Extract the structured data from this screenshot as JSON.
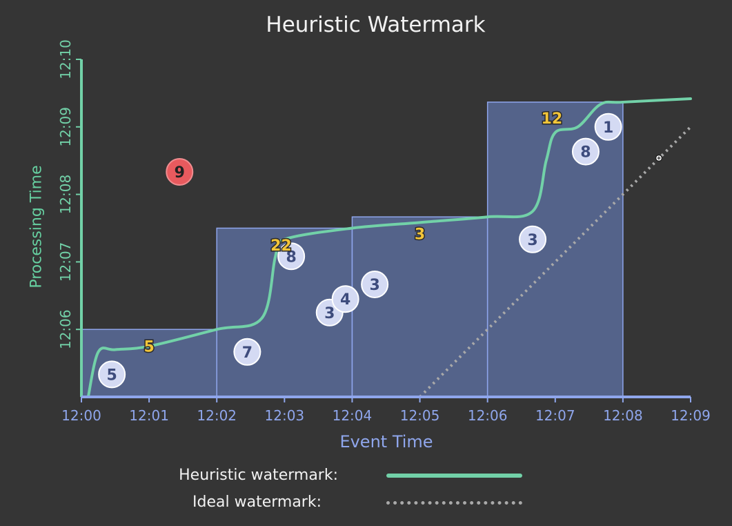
{
  "chart_data": {
    "type": "scatter",
    "title": "Heuristic Watermark",
    "xlabel": "Event Time",
    "ylabel": "Processing Time",
    "x_ticks": [
      "12:00",
      "12:01",
      "12:02",
      "12:03",
      "12:04",
      "12:05",
      "12:06",
      "12:07",
      "12:08",
      "12:09"
    ],
    "y_ticks": [
      "12:06",
      "12:07",
      "12:08",
      "12:09",
      "12:10"
    ],
    "xlim": [
      "12:00",
      "12:09"
    ],
    "ylim": [
      "12:05",
      "12:10"
    ],
    "windows": [
      {
        "start": "12:00",
        "end": "12:02",
        "fire": "12:06:00"
      },
      {
        "start": "12:02",
        "end": "12:04",
        "fire": "12:07:30"
      },
      {
        "start": "12:04",
        "end": "12:06",
        "fire": "12:07:40"
      },
      {
        "start": "12:06",
        "end": "12:08",
        "fire": "12:09:22"
      }
    ],
    "points": [
      {
        "x": "12:00:27",
        "y": "12:05:20",
        "label": "5",
        "kind": "on-time"
      },
      {
        "x": "12:02:27",
        "y": "12:05:40",
        "label": "7",
        "kind": "on-time"
      },
      {
        "x": "12:03:06",
        "y": "12:07:05",
        "label": "8",
        "kind": "on-time"
      },
      {
        "x": "12:03:40",
        "y": "12:06:15",
        "label": "3",
        "kind": "on-time"
      },
      {
        "x": "12:03:54",
        "y": "12:06:27",
        "label": "4",
        "kind": "on-time"
      },
      {
        "x": "12:04:20",
        "y": "12:06:40",
        "label": "3",
        "kind": "on-time"
      },
      {
        "x": "12:06:40",
        "y": "12:07:20",
        "label": "3",
        "kind": "on-time"
      },
      {
        "x": "12:07:27",
        "y": "12:08:38",
        "label": "8",
        "kind": "on-time"
      },
      {
        "x": "12:07:47",
        "y": "12:09:00",
        "label": "1",
        "kind": "on-time"
      },
      {
        "x": "12:01:27",
        "y": "12:08:20",
        "label": "9",
        "kind": "late"
      }
    ],
    "window_sums": [
      {
        "x": "12:01:00",
        "y": "12:05:45",
        "label": "5"
      },
      {
        "x": "12:02:57",
        "y": "12:07:15",
        "label": "22"
      },
      {
        "x": "12:05:00",
        "y": "12:07:25",
        "label": "3"
      },
      {
        "x": "12:06:57",
        "y": "12:09:08",
        "label": "12"
      }
    ],
    "series": [
      {
        "name": "Heuristic watermark:",
        "color": "#72d1a8",
        "points": [
          [
            "12:00:06",
            "12:05:00"
          ],
          [
            "12:00:15",
            "12:05:40"
          ],
          [
            "12:00:30",
            "12:05:42"
          ],
          [
            "12:01:00",
            "12:05:45"
          ],
          [
            "12:02:00",
            "12:06:00"
          ],
          [
            "12:02:40",
            "12:06:10"
          ],
          [
            "12:02:52",
            "12:07:05"
          ],
          [
            "12:03:00",
            "12:07:20"
          ],
          [
            "12:04:00",
            "12:07:30"
          ],
          [
            "12:05:00",
            "12:07:35"
          ],
          [
            "12:06:00",
            "12:07:40"
          ],
          [
            "12:06:40",
            "12:07:45"
          ],
          [
            "12:06:52",
            "12:08:30"
          ],
          [
            "12:07:00",
            "12:08:55"
          ],
          [
            "12:07:20",
            "12:09:00"
          ],
          [
            "12:07:40",
            "12:09:20"
          ],
          [
            "12:08:00",
            "12:09:22"
          ],
          [
            "12:09:00",
            "12:09:25"
          ]
        ]
      },
      {
        "name": "Ideal watermark:",
        "color": "#a9a9a9",
        "points": [
          [
            "12:05:00",
            "12:05:00"
          ],
          [
            "12:09:00",
            "12:09:00"
          ]
        ]
      }
    ],
    "grid": false,
    "legend_position": "bottom"
  },
  "colors": {
    "background": "#353535",
    "window_fill": "#5c6fa0",
    "window_edge": "#8fa6ec",
    "bubble_fill": "#d4daf3",
    "bubble_text": "#3e4c7d",
    "late_fill": "#e85a5e",
    "sum_fill": "#f2c53a"
  },
  "icons": {
    "cursor": "cursor-icon"
  }
}
